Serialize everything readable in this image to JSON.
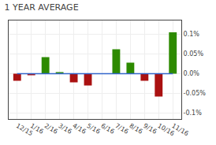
{
  "chart_data": {
    "type": "bar",
    "title": "1 YEAR AVERAGE",
    "categories": [
      "12/15",
      "1/16",
      "2/16",
      "3/16",
      "4/16",
      "5/16",
      "6/16",
      "7/16",
      "8/16",
      "9/16",
      "10/16",
      "11/16"
    ],
    "series": [
      {
        "type": "bar",
        "colors": [
          "#aa1111",
          "#aa1111",
          "#2d8a00",
          "#2d8a00",
          "#aa1111",
          "#aa1111",
          "#2d8a00",
          "#2d8a00",
          "#2d8a00",
          "#aa1111",
          "#aa1111",
          "#2d8a00"
        ],
        "values": [
          -0.018,
          -0.004,
          0.042,
          0.004,
          -0.022,
          -0.03,
          0.0,
          0.062,
          0.028,
          -0.018,
          -0.058,
          0.105
        ]
      },
      {
        "type": "line",
        "color": "#3366cc",
        "values": [
          0.0,
          0.0,
          0.0,
          0.0,
          0.0,
          0.0,
          0.0,
          0.0,
          0.0,
          0.0,
          0.0,
          0.0
        ]
      }
    ],
    "ylim": [
      -0.115,
      0.135
    ],
    "yticks": [
      {
        "value": -0.1,
        "label": "-0.1%"
      },
      {
        "value": -0.05,
        "label": "-0.05%"
      },
      {
        "value": 0.0,
        "label": "0.0%"
      },
      {
        "value": 0.05,
        "label": "0.05%"
      },
      {
        "value": 0.1,
        "label": "0.1%"
      }
    ],
    "grid": true
  }
}
